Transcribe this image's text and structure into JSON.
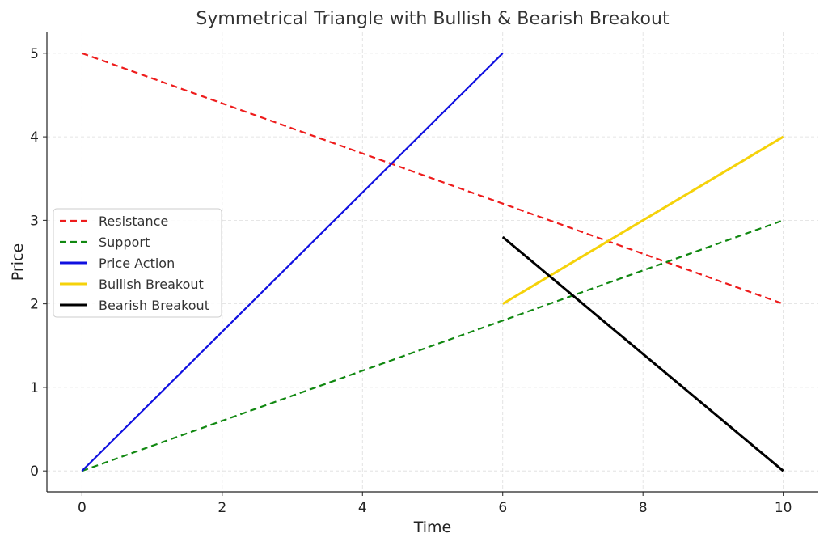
{
  "chart_data": {
    "type": "line",
    "title": "Symmetrical Triangle with Bullish & Bearish Breakout",
    "xlabel": "Time",
    "ylabel": "Price",
    "xlim": [
      -0.5,
      10.5
    ],
    "ylim": [
      -0.25,
      5.25
    ],
    "xticks": [
      0,
      2,
      4,
      6,
      8,
      10
    ],
    "yticks": [
      0,
      1,
      2,
      3,
      4,
      5
    ],
    "grid": true,
    "legend_position": "center-left",
    "series": [
      {
        "name": "Resistance",
        "color": "#ee1c1c",
        "style": "dashed",
        "x": [
          0,
          10
        ],
        "y": [
          5,
          2
        ]
      },
      {
        "name": "Support",
        "color": "#118811",
        "style": "dashed",
        "x": [
          0,
          10
        ],
        "y": [
          0,
          3
        ]
      },
      {
        "name": "Price Action",
        "color": "#1010e0",
        "style": "solid",
        "x": [
          0,
          6
        ],
        "y": [
          0,
          5
        ]
      },
      {
        "name": "Bullish Breakout",
        "color": "#f5d20a",
        "style": "solid",
        "x": [
          6,
          10
        ],
        "y": [
          2,
          4
        ]
      },
      {
        "name": "Bearish Breakout",
        "color": "#000000",
        "style": "solid",
        "x": [
          6,
          10
        ],
        "y": [
          2.8,
          0
        ]
      }
    ]
  }
}
